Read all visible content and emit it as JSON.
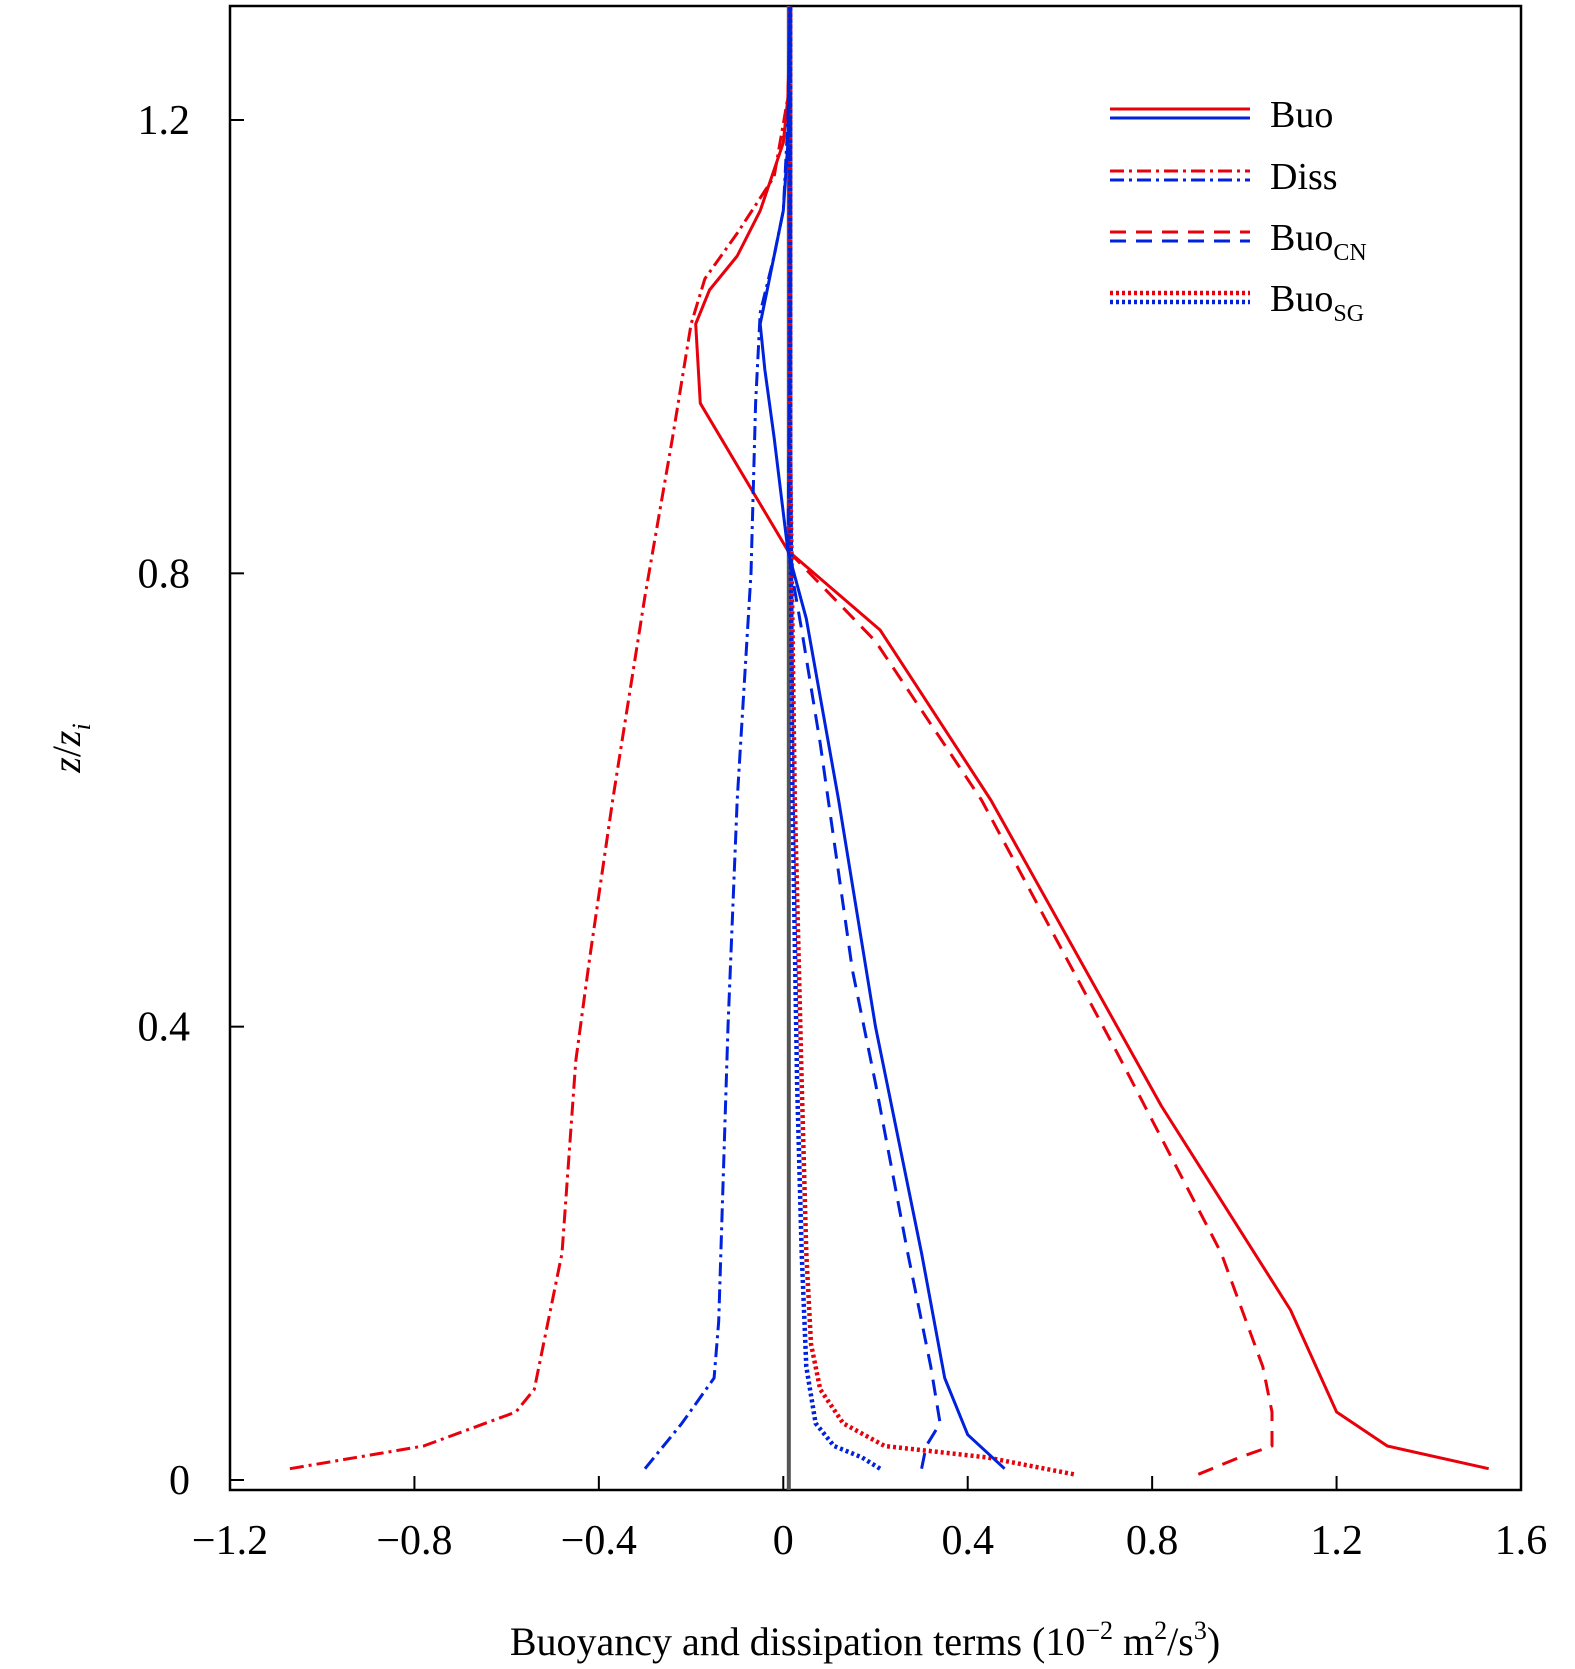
{
  "chart_data": {
    "type": "line",
    "title": "",
    "xlabel": {
      "prefix": "Buoyancy and dissipation terms (10",
      "exp": "−2",
      "unit_a": " m",
      "unit_a_exp": "2",
      "unit_b": "/s",
      "unit_b_exp": "3",
      "suffix": ")"
    },
    "ylabel": {
      "var": "z",
      "sep": "/",
      "var2": "z",
      "sub": "i"
    },
    "xlim": [
      -1.2,
      1.6
    ],
    "ylim": [
      0,
      1.3
    ],
    "xticks": [
      -1.2,
      -0.8,
      -0.4,
      0,
      0.4,
      0.8,
      1.2,
      1.6
    ],
    "xtick_labels": [
      "−1.2",
      "−0.8",
      "−0.4",
      "0",
      "0.4",
      "0.8",
      "1.2",
      "1.6"
    ],
    "yticks": [
      0,
      0.4,
      0.8,
      1.2
    ],
    "ytick_labels": [
      "0",
      "0.4",
      "0.8",
      "1.2"
    ],
    "grid": false,
    "legend_position": "top-right",
    "legend": [
      {
        "label": "Buo",
        "sub": "",
        "style": "solid"
      },
      {
        "label": "Diss",
        "sub": "",
        "style": "dashdot"
      },
      {
        "label": "Buo",
        "sub": "CN",
        "style": "dashed"
      },
      {
        "label": "Buo",
        "sub": "SG",
        "style": "dotted"
      }
    ],
    "colors": {
      "case1": "#e8000b",
      "case2": "#0022dd",
      "zero_line": "#555555"
    },
    "series": [
      {
        "name": "Buo (red)",
        "color": "case1",
        "style": "solid",
        "points": [
          [
            1.53,
            0.01
          ],
          [
            1.31,
            0.03
          ],
          [
            1.2,
            0.06
          ],
          [
            1.1,
            0.15
          ],
          [
            0.82,
            0.33
          ],
          [
            0.45,
            0.6
          ],
          [
            0.21,
            0.75
          ],
          [
            0.01,
            0.82
          ],
          [
            -0.18,
            0.95
          ],
          [
            -0.19,
            1.02
          ],
          [
            -0.16,
            1.05
          ],
          [
            -0.1,
            1.08
          ],
          [
            -0.05,
            1.12
          ],
          [
            0.0,
            1.18
          ],
          [
            0.01,
            1.22
          ],
          [
            0.015,
            1.3
          ]
        ]
      },
      {
        "name": "Diss (red)",
        "color": "case1",
        "style": "dashdot",
        "points": [
          [
            -1.07,
            0.01
          ],
          [
            -0.78,
            0.03
          ],
          [
            -0.58,
            0.06
          ],
          [
            -0.54,
            0.08
          ],
          [
            -0.48,
            0.2
          ],
          [
            -0.45,
            0.37
          ],
          [
            -0.42,
            0.46
          ],
          [
            -0.37,
            0.6
          ],
          [
            -0.3,
            0.78
          ],
          [
            -0.24,
            0.92
          ],
          [
            -0.2,
            1.02
          ],
          [
            -0.17,
            1.06
          ],
          [
            -0.1,
            1.1
          ],
          [
            -0.02,
            1.15
          ],
          [
            0.01,
            1.22
          ],
          [
            0.015,
            1.3
          ]
        ]
      },
      {
        "name": "BuoCN (red)",
        "color": "case1",
        "style": "dashed",
        "points": [
          [
            0.9,
            0.005
          ],
          [
            0.99,
            0.02
          ],
          [
            1.06,
            0.03
          ],
          [
            1.06,
            0.06
          ],
          [
            1.04,
            0.1
          ],
          [
            0.95,
            0.2
          ],
          [
            0.72,
            0.38
          ],
          [
            0.43,
            0.6
          ],
          [
            0.2,
            0.74
          ],
          [
            0.01,
            0.82
          ],
          [
            0.015,
            1.0
          ],
          [
            0.015,
            1.3
          ]
        ]
      },
      {
        "name": "BuoSG (red)",
        "color": "case1",
        "style": "dotted",
        "points": [
          [
            0.63,
            0.005
          ],
          [
            0.44,
            0.02
          ],
          [
            0.22,
            0.03
          ],
          [
            0.13,
            0.05
          ],
          [
            0.08,
            0.08
          ],
          [
            0.06,
            0.12
          ],
          [
            0.05,
            0.2
          ],
          [
            0.04,
            0.35
          ],
          [
            0.025,
            0.6
          ],
          [
            0.015,
            0.9
          ],
          [
            0.015,
            1.3
          ]
        ]
      },
      {
        "name": "Buo (blue)",
        "color": "case2",
        "style": "solid",
        "points": [
          [
            0.48,
            0.01
          ],
          [
            0.4,
            0.04
          ],
          [
            0.35,
            0.09
          ],
          [
            0.3,
            0.2
          ],
          [
            0.2,
            0.4
          ],
          [
            0.12,
            0.6
          ],
          [
            0.05,
            0.76
          ],
          [
            0.01,
            0.82
          ],
          [
            -0.02,
            0.92
          ],
          [
            -0.04,
            0.98
          ],
          [
            -0.05,
            1.02
          ],
          [
            -0.03,
            1.06
          ],
          [
            0.0,
            1.12
          ],
          [
            0.01,
            1.18
          ],
          [
            0.015,
            1.3
          ]
        ]
      },
      {
        "name": "Diss (blue)",
        "color": "case2",
        "style": "dashdot",
        "points": [
          [
            -0.3,
            0.01
          ],
          [
            -0.22,
            0.05
          ],
          [
            -0.15,
            0.09
          ],
          [
            -0.14,
            0.14
          ],
          [
            -0.12,
            0.4
          ],
          [
            -0.1,
            0.6
          ],
          [
            -0.07,
            0.8
          ],
          [
            -0.06,
            0.95
          ],
          [
            -0.05,
            1.03
          ],
          [
            -0.02,
            1.08
          ],
          [
            0.0,
            1.12
          ],
          [
            0.01,
            1.2
          ],
          [
            0.015,
            1.3
          ]
        ]
      },
      {
        "name": "BuoCN (blue)",
        "color": "case2",
        "style": "dashed",
        "points": [
          [
            0.3,
            0.01
          ],
          [
            0.31,
            0.03
          ],
          [
            0.34,
            0.05
          ],
          [
            0.32,
            0.1
          ],
          [
            0.27,
            0.2
          ],
          [
            0.2,
            0.35
          ],
          [
            0.15,
            0.45
          ],
          [
            0.08,
            0.65
          ],
          [
            0.04,
            0.75
          ],
          [
            0.01,
            0.82
          ],
          [
            0.015,
            1.0
          ],
          [
            0.015,
            1.3
          ]
        ]
      },
      {
        "name": "BuoSG (blue)",
        "color": "case2",
        "style": "dotted",
        "points": [
          [
            0.21,
            0.01
          ],
          [
            0.17,
            0.02
          ],
          [
            0.11,
            0.03
          ],
          [
            0.07,
            0.05
          ],
          [
            0.05,
            0.1
          ],
          [
            0.04,
            0.2
          ],
          [
            0.03,
            0.35
          ],
          [
            0.02,
            0.6
          ],
          [
            0.015,
            0.9
          ],
          [
            0.015,
            1.3
          ]
        ]
      }
    ]
  }
}
